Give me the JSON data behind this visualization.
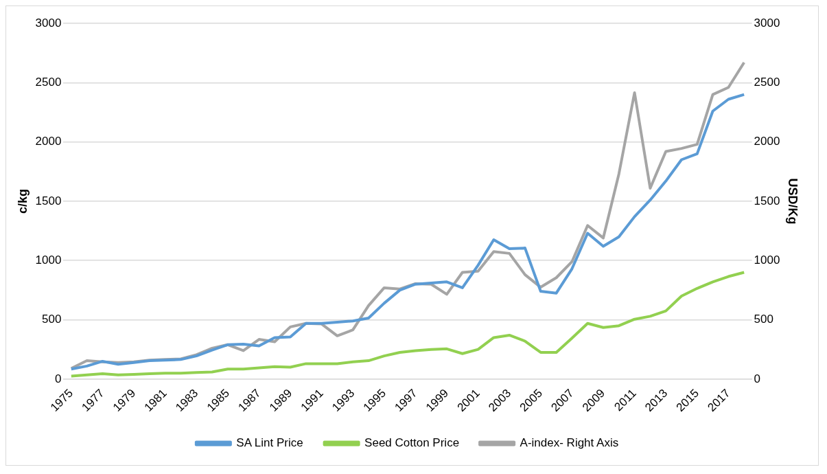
{
  "chart_data": {
    "type": "line",
    "ylabel": "c/kg",
    "y2label": "USD/Kg",
    "categories": [
      "1975",
      null,
      "1977",
      null,
      "1979",
      null,
      "1981",
      null,
      "1983",
      null,
      "1985",
      null,
      "1987",
      null,
      "1989",
      null,
      "1991",
      null,
      "1993",
      null,
      "1995",
      null,
      "1997",
      null,
      "1999",
      null,
      "2001",
      null,
      "2003",
      null,
      "2005",
      null,
      "2007",
      null,
      "2009",
      null,
      "2011",
      null,
      "2013",
      null,
      "2015",
      null,
      "2017",
      null
    ],
    "series": [
      {
        "name": "SA Lint Price",
        "color": "#5b9bd5",
        "values": [
          85,
          110,
          150,
          125,
          140,
          155,
          160,
          165,
          195,
          245,
          290,
          295,
          280,
          350,
          355,
          470,
          470,
          480,
          490,
          515,
          640,
          750,
          800,
          810,
          820,
          770,
          960,
          1175,
          1100,
          1105,
          740,
          725,
          930,
          1230,
          1120,
          1200,
          1370,
          1510,
          1670,
          1850,
          1900,
          2260,
          2360,
          2400
        ]
      },
      {
        "name": "Seed Cotton Price",
        "color": "#92d050",
        "values": [
          25,
          35,
          45,
          35,
          40,
          45,
          50,
          50,
          55,
          60,
          85,
          85,
          95,
          105,
          100,
          130,
          130,
          130,
          145,
          155,
          195,
          225,
          240,
          250,
          255,
          215,
          250,
          350,
          370,
          320,
          225,
          225,
          345,
          470,
          435,
          450,
          505,
          530,
          575,
          700,
          765,
          820,
          865,
          900
        ]
      },
      {
        "name": "A-index- Right Axis",
        "color": "#a5a5a5",
        "axis": "y2",
        "values": [
          90,
          155,
          145,
          140,
          145,
          160,
          165,
          170,
          205,
          260,
          290,
          240,
          335,
          315,
          440,
          470,
          465,
          365,
          415,
          620,
          770,
          760,
          805,
          800,
          715,
          900,
          910,
          1075,
          1060,
          880,
          775,
          855,
          990,
          1295,
          1190,
          1730,
          2415,
          1610,
          1920,
          1945,
          1980,
          2400,
          2460,
          2670
        ]
      }
    ],
    "ylim": [
      0,
      3000
    ],
    "yticks": [
      0,
      500,
      1000,
      1500,
      2000,
      2500,
      3000
    ],
    "y2lim": [
      0,
      3000
    ],
    "y2ticks": [
      0,
      500,
      1000,
      1500,
      2000,
      2500,
      3000
    ],
    "grid": "y",
    "legend": "bottom",
    "marker": "none",
    "line_style": "solid"
  }
}
